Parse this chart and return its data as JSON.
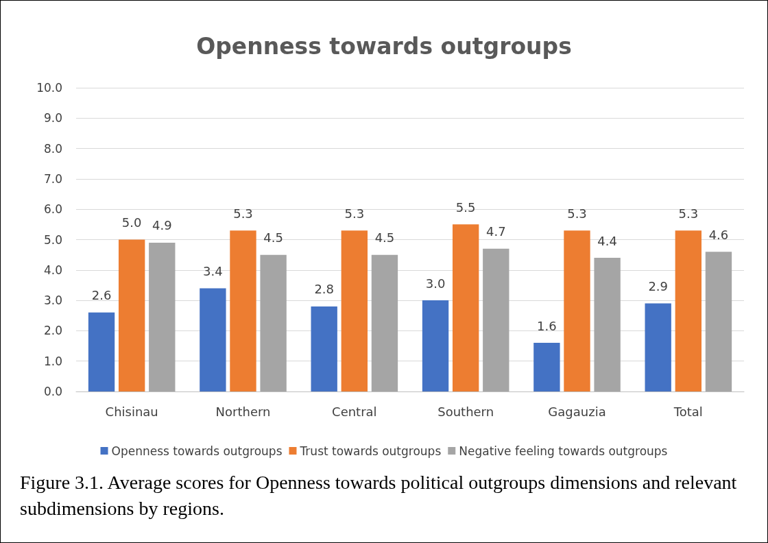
{
  "chart_data": {
    "type": "bar",
    "title": "Openness towards outgroups",
    "categories": [
      "Chisinau",
      "Northern",
      "Central",
      "Southern",
      "Gagauzia",
      "Total"
    ],
    "series": [
      {
        "name": "Openness towards outgroups",
        "color": "#4472c4",
        "values": [
          2.6,
          3.4,
          2.8,
          3.0,
          1.6,
          2.9
        ],
        "value_labels": [
          "2.6",
          "3.4",
          "2.8",
          "3.0",
          "1.6",
          "2.9"
        ]
      },
      {
        "name": "Trust towards outgroups",
        "color": "#ed7d31",
        "values": [
          5.0,
          5.3,
          5.3,
          5.5,
          5.3,
          5.3
        ],
        "value_labels": [
          "5.0",
          "5.3",
          "5.3",
          "5.5",
          "5.3",
          "5.3"
        ]
      },
      {
        "name": "Negative feeling towards outgroups",
        "color": "#a5a5a5",
        "values": [
          4.9,
          4.5,
          4.5,
          4.7,
          4.4,
          4.6
        ],
        "value_labels": [
          "4.9",
          "4.5",
          "4.5",
          "4.7",
          "4.4",
          "4.6"
        ]
      }
    ],
    "ylim": [
      0,
      10
    ],
    "yticks": [
      {
        "value": 0,
        "label": "0.0"
      },
      {
        "value": 1,
        "label": "1.0"
      },
      {
        "value": 2,
        "label": "2.0"
      },
      {
        "value": 3,
        "label": "3.0"
      },
      {
        "value": 4,
        "label": "4.0"
      },
      {
        "value": 5,
        "label": "5.0"
      },
      {
        "value": 6,
        "label": "6.0"
      },
      {
        "value": 7,
        "label": "7.0"
      },
      {
        "value": 8,
        "label": "8.0"
      },
      {
        "value": 9,
        "label": "9.0"
      },
      {
        "value": 10,
        "label": "10.0"
      }
    ],
    "grid": "y",
    "legend": "bottom",
    "annotations": [
      "Figure 3.1. Average scores for Openness towards political outgroups dimensions and relevant subdimensions by regions."
    ]
  }
}
